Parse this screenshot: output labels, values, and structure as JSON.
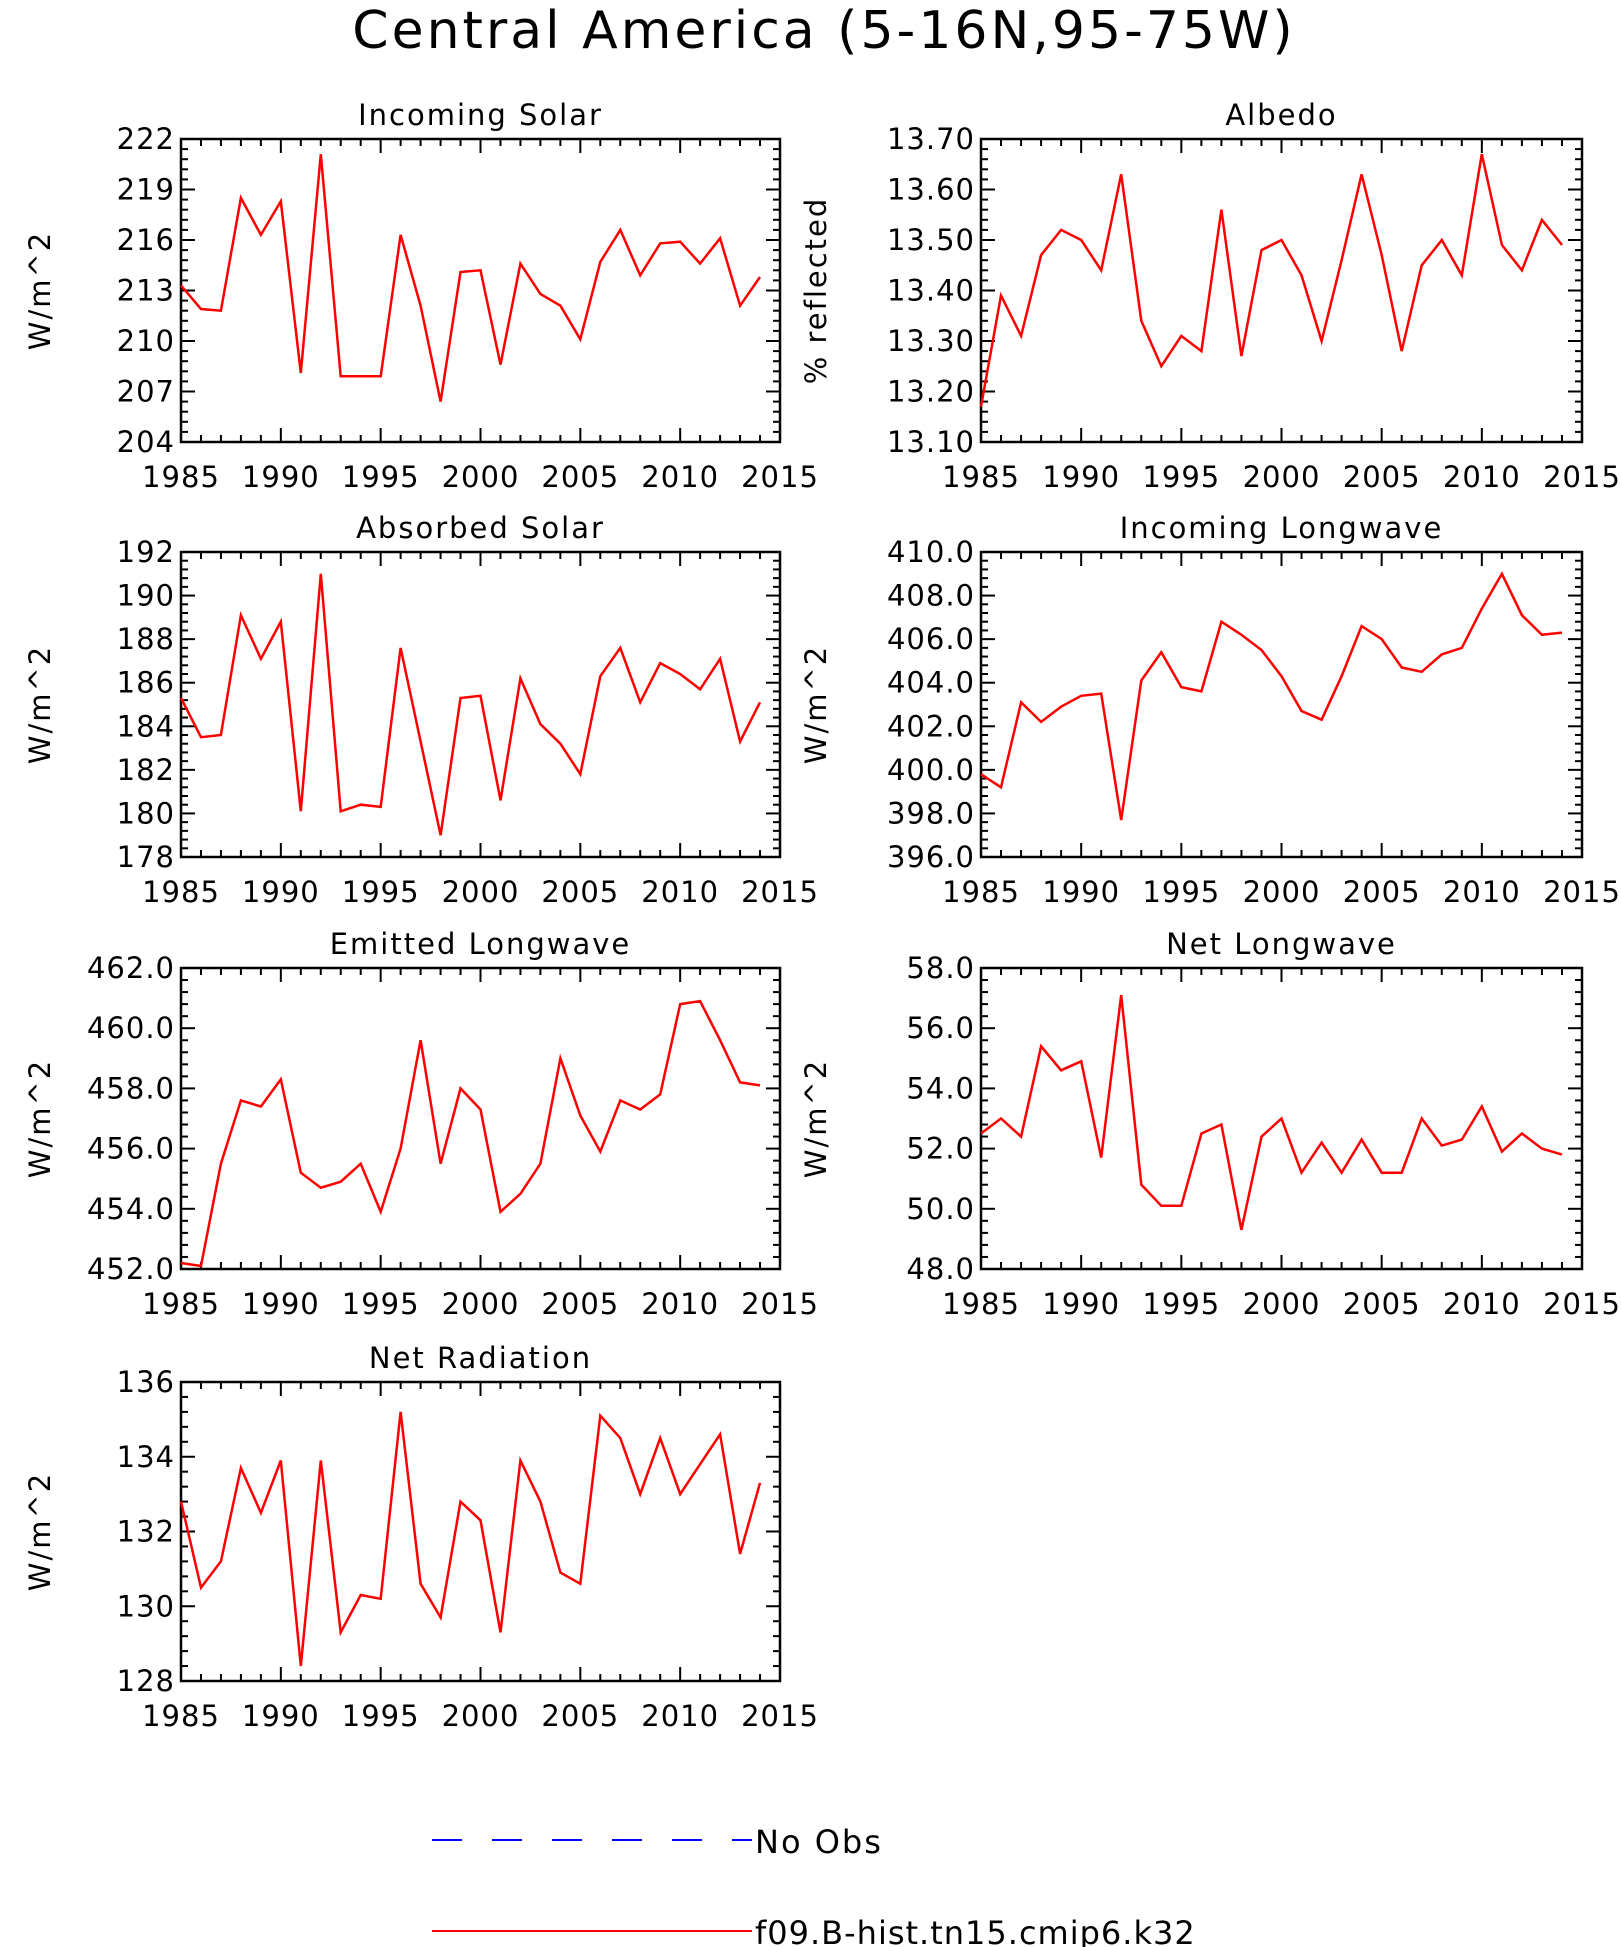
{
  "figure": {
    "title": "Central America (5-16N,95-75W)",
    "legend": [
      {
        "label": "No Obs",
        "color": "#0000ff",
        "style": "dashed"
      },
      {
        "label": "f09.B-hist.tn15.cmip6.k32",
        "color": "#ff0000",
        "style": "solid"
      }
    ]
  },
  "chart_data": [
    {
      "type": "line",
      "title": "Incoming Solar",
      "ylabel": "W/m^2",
      "xlabel": "",
      "xlim": [
        1985,
        2015
      ],
      "ylim": [
        204,
        222
      ],
      "xticks": [
        "1985",
        "1990",
        "1995",
        "2000",
        "2005",
        "2010",
        "2015"
      ],
      "yticks": [
        "204",
        "207",
        "210",
        "213",
        "216",
        "219",
        "222"
      ],
      "series": [
        {
          "name": "f09.B-hist.tn15.cmip6.k32",
          "color": "#ff0000",
          "x": [
            1985,
            1986,
            1987,
            1988,
            1989,
            1990,
            1991,
            1992,
            1993,
            1994,
            1995,
            1996,
            1997,
            1998,
            1999,
            2000,
            2001,
            2002,
            2003,
            2004,
            2005,
            2006,
            2007,
            2008,
            2009,
            2010,
            2011,
            2012,
            2013,
            2014
          ],
          "values": [
            213.3,
            211.9,
            211.8,
            218.5,
            216.3,
            218.3,
            208.1,
            221.1,
            207.9,
            207.9,
            207.9,
            216.3,
            212.1,
            206.4,
            214.1,
            214.2,
            208.6,
            214.6,
            212.8,
            212.1,
            210.1,
            214.7,
            216.6,
            213.9,
            215.8,
            215.9,
            214.6,
            216.1,
            212.1,
            213.8
          ]
        }
      ]
    },
    {
      "type": "line",
      "title": "Albedo",
      "ylabel": "% reflected",
      "xlabel": "",
      "xlim": [
        1985,
        2015
      ],
      "ylim": [
        13.1,
        13.7
      ],
      "xticks": [
        "1985",
        "1990",
        "1995",
        "2000",
        "2005",
        "2010",
        "2015"
      ],
      "yticks": [
        "13.10",
        "13.20",
        "13.30",
        "13.40",
        "13.50",
        "13.60",
        "13.70"
      ],
      "series": [
        {
          "name": "f09.B-hist.tn15.cmip6.k32",
          "color": "#ff0000",
          "x": [
            1985,
            1986,
            1987,
            1988,
            1989,
            1990,
            1991,
            1992,
            1993,
            1994,
            1995,
            1996,
            1997,
            1998,
            1999,
            2000,
            2001,
            2002,
            2003,
            2004,
            2005,
            2006,
            2007,
            2008,
            2009,
            2010,
            2011,
            2012,
            2013,
            2014
          ],
          "values": [
            13.17,
            13.39,
            13.31,
            13.47,
            13.52,
            13.5,
            13.44,
            13.63,
            13.34,
            13.25,
            13.31,
            13.28,
            13.56,
            13.27,
            13.48,
            13.5,
            13.43,
            13.3,
            13.46,
            13.63,
            13.47,
            13.28,
            13.45,
            13.5,
            13.43,
            13.67,
            13.49,
            13.44,
            13.54,
            13.49
          ]
        }
      ]
    },
    {
      "type": "line",
      "title": "Absorbed Solar",
      "ylabel": "W/m^2",
      "xlabel": "",
      "xlim": [
        1985,
        2015
      ],
      "ylim": [
        178,
        192
      ],
      "xticks": [
        "1985",
        "1990",
        "1995",
        "2000",
        "2005",
        "2010",
        "2015"
      ],
      "yticks": [
        "178",
        "180",
        "182",
        "184",
        "186",
        "188",
        "190",
        "192"
      ],
      "series": [
        {
          "name": "f09.B-hist.tn15.cmip6.k32",
          "color": "#ff0000",
          "x": [
            1985,
            1986,
            1987,
            1988,
            1989,
            1990,
            1991,
            1992,
            1993,
            1994,
            1995,
            1996,
            1997,
            1998,
            1999,
            2000,
            2001,
            2002,
            2003,
            2004,
            2005,
            2006,
            2007,
            2008,
            2009,
            2010,
            2011,
            2012,
            2013,
            2014
          ],
          "values": [
            185.3,
            183.5,
            183.6,
            189.1,
            187.1,
            188.8,
            180.1,
            191.0,
            180.1,
            180.4,
            180.3,
            187.6,
            183.3,
            179.0,
            185.3,
            185.4,
            180.6,
            186.2,
            184.1,
            183.2,
            181.8,
            186.3,
            187.6,
            185.1,
            186.9,
            186.4,
            185.7,
            187.1,
            183.3,
            185.1
          ]
        }
      ]
    },
    {
      "type": "line",
      "title": "Incoming Longwave",
      "ylabel": "W/m^2",
      "xlabel": "",
      "xlim": [
        1985,
        2015
      ],
      "ylim": [
        396,
        410
      ],
      "xticks": [
        "1985",
        "1990",
        "1995",
        "2000",
        "2005",
        "2010",
        "2015"
      ],
      "yticks": [
        "396.0",
        "398.0",
        "400.0",
        "402.0",
        "404.0",
        "406.0",
        "408.0",
        "410.0"
      ],
      "series": [
        {
          "name": "f09.B-hist.tn15.cmip6.k32",
          "color": "#ff0000",
          "x": [
            1985,
            1986,
            1987,
            1988,
            1989,
            1990,
            1991,
            1992,
            1993,
            1994,
            1995,
            1996,
            1997,
            1998,
            1999,
            2000,
            2001,
            2002,
            2003,
            2004,
            2005,
            2006,
            2007,
            2008,
            2009,
            2010,
            2011,
            2012,
            2013,
            2014
          ],
          "values": [
            399.8,
            399.2,
            403.1,
            402.2,
            402.9,
            403.4,
            403.5,
            397.7,
            404.1,
            405.4,
            403.8,
            403.6,
            406.8,
            406.2,
            405.5,
            404.3,
            402.7,
            402.3,
            404.3,
            406.6,
            406.0,
            404.7,
            404.5,
            405.3,
            405.6,
            407.4,
            409.0,
            407.1,
            406.2,
            406.3
          ]
        }
      ]
    },
    {
      "type": "line",
      "title": "Emitted Longwave",
      "ylabel": "W/m^2",
      "xlabel": "",
      "xlim": [
        1985,
        2015
      ],
      "ylim": [
        452,
        462
      ],
      "xticks": [
        "1985",
        "1990",
        "1995",
        "2000",
        "2005",
        "2010",
        "2015"
      ],
      "yticks": [
        "452.0",
        "454.0",
        "456.0",
        "458.0",
        "460.0",
        "462.0"
      ],
      "series": [
        {
          "name": "f09.B-hist.tn15.cmip6.k32",
          "color": "#ff0000",
          "x": [
            1985,
            1986,
            1987,
            1988,
            1989,
            1990,
            1991,
            1992,
            1993,
            1994,
            1995,
            1996,
            1997,
            1998,
            1999,
            2000,
            2001,
            2002,
            2003,
            2004,
            2005,
            2006,
            2007,
            2008,
            2009,
            2010,
            2011,
            2012,
            2013,
            2014
          ],
          "values": [
            452.2,
            452.1,
            455.5,
            457.6,
            457.4,
            458.3,
            455.2,
            454.7,
            454.9,
            455.5,
            453.9,
            456.0,
            459.6,
            455.5,
            458.0,
            457.3,
            453.9,
            454.5,
            455.5,
            459.0,
            457.1,
            455.9,
            457.6,
            457.3,
            457.8,
            460.8,
            460.9,
            459.6,
            458.2,
            458.1
          ]
        }
      ]
    },
    {
      "type": "line",
      "title": "Net Longwave",
      "ylabel": "W/m^2",
      "xlabel": "",
      "xlim": [
        1985,
        2015
      ],
      "ylim": [
        48,
        58
      ],
      "xticks": [
        "1985",
        "1990",
        "1995",
        "2000",
        "2005",
        "2010",
        "2015"
      ],
      "yticks": [
        "48.0",
        "50.0",
        "52.0",
        "54.0",
        "56.0",
        "58.0"
      ],
      "series": [
        {
          "name": "f09.B-hist.tn15.cmip6.k32",
          "color": "#ff0000",
          "x": [
            1985,
            1986,
            1987,
            1988,
            1989,
            1990,
            1991,
            1992,
            1993,
            1994,
            1995,
            1996,
            1997,
            1998,
            1999,
            2000,
            2001,
            2002,
            2003,
            2004,
            2005,
            2006,
            2007,
            2008,
            2009,
            2010,
            2011,
            2012,
            2013,
            2014
          ],
          "values": [
            52.5,
            53.0,
            52.4,
            55.4,
            54.6,
            54.9,
            51.7,
            57.1,
            50.8,
            50.1,
            50.1,
            52.5,
            52.8,
            49.3,
            52.4,
            53.0,
            51.2,
            52.2,
            51.2,
            52.3,
            51.2,
            51.2,
            53.0,
            52.1,
            52.3,
            53.4,
            51.9,
            52.5,
            52.0,
            51.8
          ]
        }
      ]
    },
    {
      "type": "line",
      "title": "Net Radiation",
      "ylabel": "W/m^2",
      "xlabel": "",
      "xlim": [
        1985,
        2015
      ],
      "ylim": [
        128,
        136
      ],
      "xticks": [
        "1985",
        "1990",
        "1995",
        "2000",
        "2005",
        "2010",
        "2015"
      ],
      "yticks": [
        "128",
        "130",
        "132",
        "134",
        "136"
      ],
      "series": [
        {
          "name": "f09.B-hist.tn15.cmip6.k32",
          "color": "#ff0000",
          "x": [
            1985,
            1986,
            1987,
            1988,
            1989,
            1990,
            1991,
            1992,
            1993,
            1994,
            1995,
            1996,
            1997,
            1998,
            1999,
            2000,
            2001,
            2002,
            2003,
            2004,
            2005,
            2006,
            2007,
            2008,
            2009,
            2010,
            2011,
            2012,
            2013,
            2014
          ],
          "values": [
            132.8,
            130.5,
            131.2,
            133.7,
            132.5,
            133.9,
            128.4,
            133.9,
            129.3,
            130.3,
            130.2,
            135.2,
            130.6,
            129.7,
            132.8,
            132.3,
            129.3,
            133.9,
            132.8,
            130.9,
            130.6,
            135.1,
            134.5,
            133.0,
            134.5,
            133.0,
            133.8,
            134.6,
            131.4,
            133.3
          ]
        }
      ]
    }
  ]
}
